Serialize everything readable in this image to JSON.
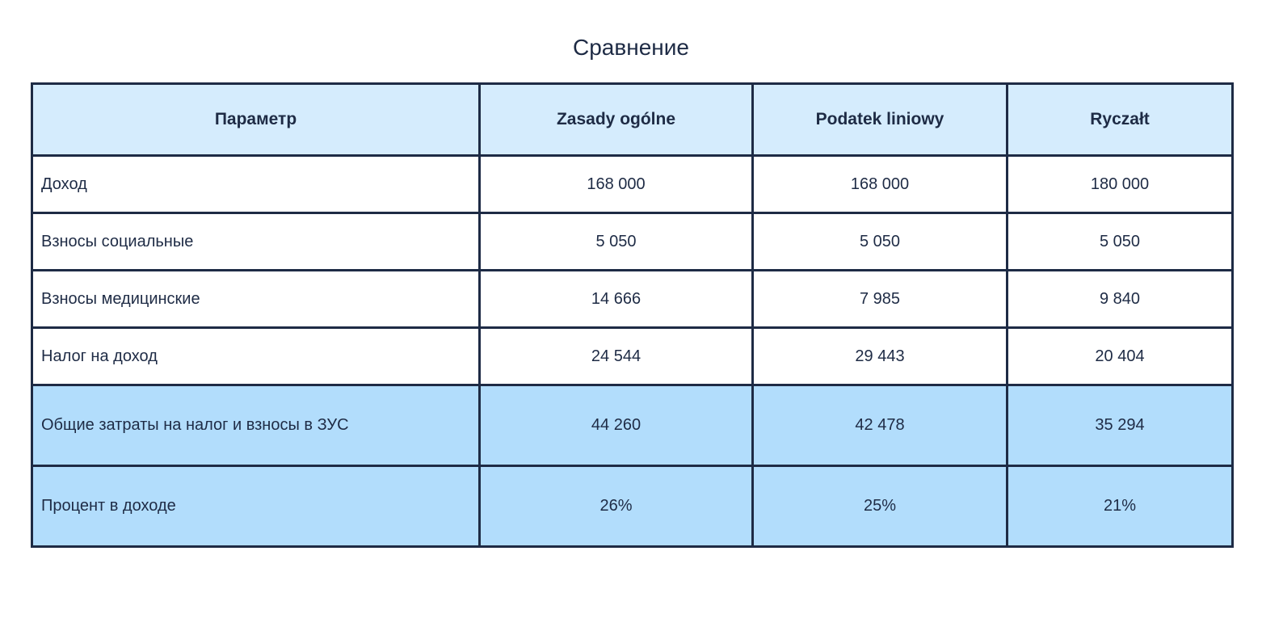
{
  "page_title": "Сравнение",
  "chart_data": {
    "type": "table",
    "title": "Сравнение",
    "columns": [
      "Параметр",
      "Zasady ogólne",
      "Podatek liniowy",
      "Ryczałt"
    ],
    "rows": [
      {
        "label": "Доход",
        "values": [
          "168 000",
          "168 000",
          "180 000"
        ],
        "highlight": false
      },
      {
        "label": "Взносы социальные",
        "values": [
          "5 050",
          "5 050",
          "5 050"
        ],
        "highlight": false
      },
      {
        "label": "Взносы медицинские",
        "values": [
          "14 666",
          "7 985",
          "9 840"
        ],
        "highlight": false
      },
      {
        "label": "Налог на доход",
        "values": [
          "24 544",
          "29 443",
          "20 404"
        ],
        "highlight": false
      },
      {
        "label": "Общие затраты на налог и взносы в ЗУС",
        "values": [
          "44 260",
          "42 478",
          "35 294"
        ],
        "highlight": true
      },
      {
        "label": "Процент в доходе",
        "values": [
          "26%",
          "25%",
          "21%"
        ],
        "highlight": true
      }
    ],
    "colors": {
      "header_bg": "#d5ecfd",
      "highlight_bg": "#b2ddfc",
      "border": "#1e2b45",
      "text": "#1e2b45",
      "row_bg": "#ffffff"
    }
  }
}
